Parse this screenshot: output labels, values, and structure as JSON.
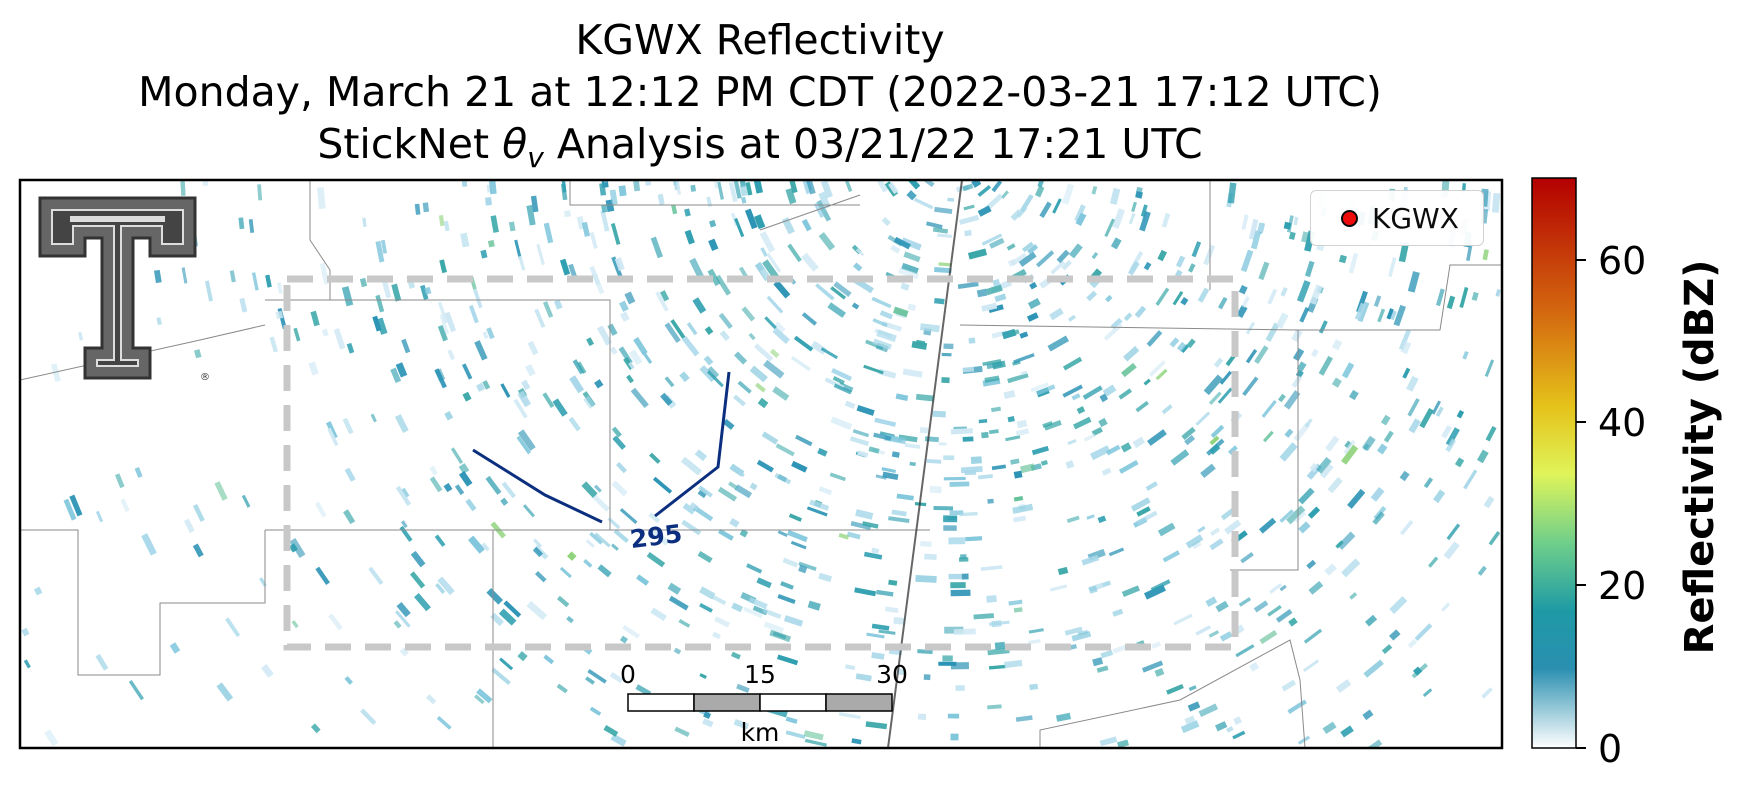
{
  "title": {
    "line1": "KGWX Reflectivity",
    "line2": "Monday, March 21 at 12:12 PM CDT (2022-03-21 17:12 UTC)",
    "line3_prefix": "StickNet ",
    "line3_symbol": "θ",
    "line3_subscript": "v",
    "line3_suffix": " Analysis at 03/21/22 17:21 UTC"
  },
  "legend": {
    "label": "KGWX",
    "marker_color": "#ee0000"
  },
  "contour": {
    "label": "295",
    "color": "#0b2f7e"
  },
  "scale_bar": {
    "ticks": [
      "0",
      "15",
      "30"
    ],
    "unit": "km"
  },
  "colorbar": {
    "label": "Reflectivity (dBZ)",
    "ticks": [
      "0",
      "20",
      "40",
      "60"
    ],
    "range": [
      0,
      70
    ],
    "colors": [
      "#ffffff",
      "#2a8fb0",
      "#1e9aa5",
      "#6fcf8a",
      "#dff45a",
      "#e5c21a",
      "#d46a10",
      "#b30000"
    ]
  },
  "logo": {
    "name": "Texas Tech Double T"
  },
  "colors": {
    "radar_teal": "#2b93b5",
    "analysis_box": "#c8c8c8",
    "borders": "#888888"
  }
}
